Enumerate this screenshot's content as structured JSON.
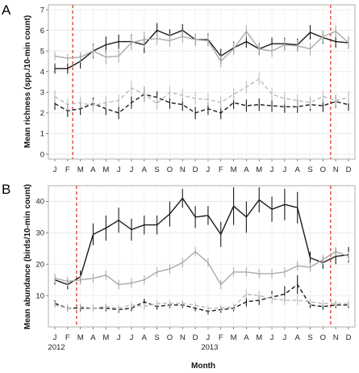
{
  "chart_data": [
    {
      "type": "line",
      "panel_label": "A",
      "title": "",
      "xlabel": "",
      "ylabel": "Mean richness (spp./10-min count)",
      "ylim": [
        0,
        7
      ],
      "yticks": [
        0,
        1,
        2,
        3,
        4,
        5,
        6,
        7
      ],
      "grid": true,
      "categories": [
        "J",
        "F",
        "M",
        "A",
        "M",
        "J",
        "J",
        "A",
        "S",
        "O",
        "N",
        "D",
        "J",
        "F",
        "M",
        "A",
        "M",
        "J",
        "J",
        "A",
        "S",
        "O",
        "N",
        "D"
      ],
      "event_lines_x_index": [
        1.4,
        21.6
      ],
      "series": [
        {
          "color": "#1a1a1a",
          "dash": "solid",
          "values": [
            4.15,
            4.15,
            4.5,
            5.0,
            5.3,
            5.45,
            5.45,
            5.3,
            6.0,
            5.75,
            6.0,
            5.55,
            5.55,
            4.75,
            5.15,
            5.45,
            5.1,
            5.35,
            5.35,
            5.3,
            5.9,
            5.65,
            5.45,
            5.4
          ],
          "errors": [
            0.25,
            0.25,
            0.35,
            0.35,
            0.4,
            0.35,
            0.35,
            0.4,
            0.35,
            0.3,
            0.3,
            0.3,
            0.3,
            0.35,
            0.3,
            0.3,
            0.3,
            0.3,
            0.3,
            0.3,
            0.35,
            0.3,
            0.3,
            0.3
          ]
        },
        {
          "color": "#aaaaaa",
          "dash": "solid",
          "values": [
            4.75,
            4.65,
            4.7,
            5.0,
            4.7,
            4.75,
            5.4,
            5.55,
            5.6,
            5.5,
            5.7,
            5.55,
            5.5,
            4.5,
            5.1,
            5.95,
            5.1,
            5.0,
            5.3,
            5.25,
            5.1,
            5.7,
            5.95,
            5.4
          ],
          "errors": [
            0.2,
            0.2,
            0.25,
            0.3,
            0.35,
            0.3,
            0.35,
            0.4,
            0.3,
            0.3,
            0.3,
            0.3,
            0.3,
            0.3,
            0.3,
            0.3,
            0.3,
            0.3,
            0.3,
            0.3,
            0.3,
            0.3,
            0.3,
            0.3
          ]
        },
        {
          "color": "#1a1a1a",
          "dash": "dashed",
          "values": [
            2.45,
            2.1,
            2.2,
            2.45,
            2.2,
            2.0,
            2.5,
            2.9,
            2.75,
            2.5,
            2.4,
            2.0,
            2.2,
            2.0,
            2.5,
            2.35,
            2.4,
            2.35,
            2.3,
            2.3,
            2.4,
            2.35,
            2.55,
            2.4
          ],
          "errors": [
            0.3,
            0.3,
            0.3,
            0.3,
            0.3,
            0.3,
            0.3,
            0.35,
            0.3,
            0.3,
            0.3,
            0.3,
            0.3,
            0.3,
            0.3,
            0.3,
            0.3,
            0.3,
            0.3,
            0.3,
            0.3,
            0.3,
            0.3,
            0.3
          ]
        },
        {
          "color": "#bbbbbb",
          "dash": "dashed",
          "values": [
            2.8,
            2.4,
            2.5,
            2.35,
            2.5,
            2.6,
            3.2,
            2.9,
            2.45,
            3.0,
            2.85,
            2.7,
            2.65,
            2.5,
            2.9,
            3.25,
            3.65,
            2.9,
            2.7,
            2.6,
            2.5,
            2.8,
            2.6,
            2.75
          ],
          "errors": [
            0.3,
            0.3,
            0.3,
            0.3,
            0.3,
            0.3,
            0.35,
            0.4,
            0.3,
            0.3,
            0.3,
            0.3,
            0.3,
            0.3,
            0.3,
            0.3,
            0.3,
            0.3,
            0.3,
            0.3,
            0.3,
            0.3,
            0.3,
            0.3
          ]
        }
      ]
    },
    {
      "type": "line",
      "panel_label": "B",
      "title": "",
      "xlabel": "Month",
      "ylabel": "Mean abundance (birds/10-min count)",
      "ylim": [
        0,
        45
      ],
      "yticks": [
        10,
        20,
        30,
        40
      ],
      "grid": true,
      "categories": [
        "J",
        "F",
        "M",
        "A",
        "M",
        "J",
        "J",
        "A",
        "S",
        "O",
        "N",
        "D",
        "J",
        "F",
        "M",
        "A",
        "M",
        "J",
        "J",
        "A",
        "S",
        "O",
        "N",
        "D"
      ],
      "year_labels": [
        {
          "text": "2012",
          "index": 0
        },
        {
          "text": "2013",
          "index": 12
        }
      ],
      "event_lines_x_index": [
        1.7,
        21.6
      ],
      "series": [
        {
          "color": "#1a1a1a",
          "dash": "solid",
          "values": [
            15,
            13.5,
            16,
            29.5,
            31.5,
            34,
            31,
            32.5,
            32.5,
            36,
            41,
            35,
            35.5,
            29.5,
            38.5,
            35,
            40.5,
            37.5,
            39,
            38,
            22,
            20.5,
            22.5,
            23
          ],
          "errors": [
            1.5,
            1.5,
            2,
            3.5,
            4,
            4,
            3.5,
            3,
            3,
            4,
            3,
            3.5,
            3,
            4,
            6,
            5,
            4,
            4,
            5,
            5,
            2,
            2,
            2.5,
            2.5
          ]
        },
        {
          "color": "#aaaaaa",
          "dash": "solid",
          "values": [
            15.5,
            14.5,
            15,
            15.5,
            16.5,
            13.5,
            14,
            15,
            17.5,
            18.5,
            20.5,
            24,
            20.5,
            13.5,
            17.5,
            17.5,
            17,
            17,
            17.5,
            19.5,
            19,
            21.5,
            24,
            22.5
          ],
          "errors": [
            1.5,
            1.5,
            1.5,
            1.5,
            1.5,
            1.5,
            1.5,
            1.5,
            1.5,
            1.5,
            1.5,
            1.5,
            1.5,
            1.5,
            1.5,
            1.5,
            1.5,
            1.5,
            1.5,
            1.5,
            1.5,
            1.5,
            1.5,
            1.5
          ]
        },
        {
          "color": "#1a1a1a",
          "dash": "dashed",
          "values": [
            7.5,
            6,
            6,
            6,
            6,
            5.5,
            6,
            8,
            6.5,
            7,
            7,
            6,
            5,
            5.5,
            6,
            8,
            8.5,
            9.5,
            10.5,
            13.5,
            7,
            6.5,
            7,
            7
          ],
          "errors": [
            1,
            1,
            1,
            1,
            1,
            1,
            1,
            1,
            1,
            1,
            1,
            1,
            1,
            1,
            1,
            1.5,
            1.5,
            2,
            2.5,
            3,
            1,
            1,
            1,
            1
          ]
        },
        {
          "color": "#bbbbbb",
          "dash": "dashed",
          "values": [
            7,
            6,
            6.5,
            6,
            6.5,
            6,
            7,
            6.5,
            7.5,
            7.5,
            7.5,
            7,
            6,
            6,
            6.5,
            10.5,
            10,
            9,
            8.5,
            8.5,
            8,
            7.5,
            7.5,
            7.5
          ],
          "errors": [
            1,
            1,
            1,
            1,
            1,
            1,
            1,
            1,
            1,
            1,
            1,
            1,
            1,
            1,
            1,
            1.5,
            1.5,
            1.5,
            1.5,
            1.5,
            1,
            1,
            1,
            1
          ]
        }
      ]
    }
  ]
}
